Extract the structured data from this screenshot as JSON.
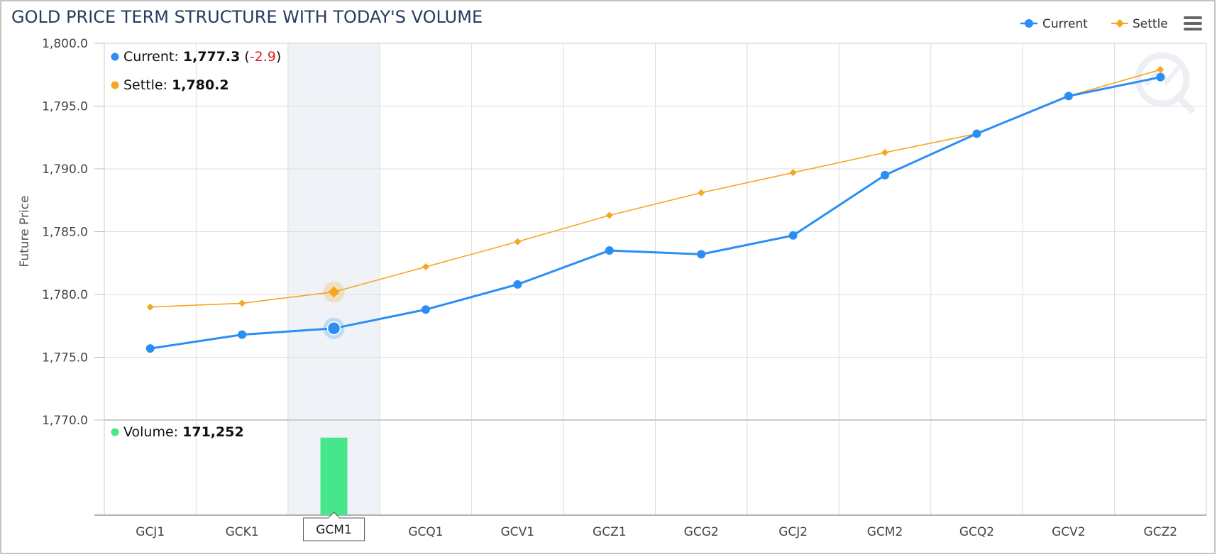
{
  "chart_data": {
    "type": "line",
    "title": "GOLD PRICE TERM STRUCTURE WITH TODAY'S VOLUME",
    "ylabel": "Future Price",
    "xlabel": "",
    "categories": [
      "GCJ1",
      "GCK1",
      "GCM1",
      "GCQ1",
      "GCV1",
      "GCZ1",
      "GCG2",
      "GCJ2",
      "GCM2",
      "GCQ2",
      "GCV2",
      "GCZ2"
    ],
    "ylim": [
      1770,
      1800
    ],
    "yticks": [
      1770,
      1775,
      1780,
      1785,
      1790,
      1795,
      1800
    ],
    "ytick_labels": [
      "1,770.0",
      "1,775.0",
      "1,780.0",
      "1,785.0",
      "1,790.0",
      "1,795.0",
      "1,800.0"
    ],
    "grid": true,
    "legend_position": "top-right",
    "series": [
      {
        "name": "Current",
        "color": "#2b8ef3",
        "marker": "circle",
        "values": [
          1775.7,
          1776.8,
          1777.3,
          1778.8,
          1780.8,
          1783.5,
          1783.2,
          1784.7,
          1789.5,
          1792.8,
          1795.8,
          1797.3
        ]
      },
      {
        "name": "Settle",
        "color": "#f5a623",
        "marker": "diamond",
        "values": [
          1779.0,
          1779.3,
          1780.2,
          1782.2,
          1784.2,
          1786.3,
          1788.1,
          1789.7,
          1791.3,
          1792.8,
          1795.8,
          1797.9
        ]
      }
    ],
    "volume": {
      "name": "Volume",
      "color": "#46e68a",
      "values": [
        null,
        null,
        171252,
        null,
        null,
        null,
        null,
        null,
        null,
        null,
        null,
        null
      ],
      "ymax": 210000
    },
    "highlight": {
      "category": "GCM1",
      "index": 2,
      "current_label": "Current",
      "current_value": "1,777.3",
      "current_change": "-2.9",
      "settle_label": "Settle",
      "settle_value": "1,780.2",
      "volume_label": "Volume",
      "volume_value": "171,252",
      "tooltip": "GCM1"
    },
    "colors": {
      "title": "#273c5e",
      "axis_text": "#444444",
      "grid": "#dddddd",
      "band": "#e7ecf3",
      "negative": "#e02020",
      "frame": "#b0b0b0"
    }
  }
}
